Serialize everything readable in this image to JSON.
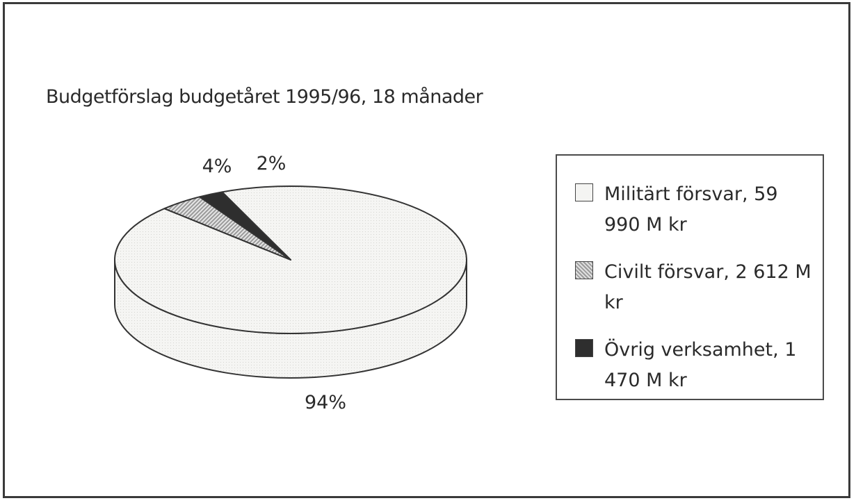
{
  "chart_data": {
    "type": "pie",
    "title": "Budgetförslag budgetåret 1995/96, 18 månader",
    "slices": [
      {
        "label": "Militärt försvar, 59 990 M kr",
        "value": 59990,
        "percent_label": "94%",
        "color": "#f4f4f2"
      },
      {
        "label": "Civilt försvar, 2 612 M kr",
        "value": 2612,
        "percent_label": "4%",
        "color": "#c8c8c8"
      },
      {
        "label": "Övrig verksamhet, 1 470 M kr",
        "value": 1470,
        "percent_label": "2%",
        "color": "#2e2e2e"
      }
    ],
    "legend_position": "right",
    "style": "3d"
  }
}
